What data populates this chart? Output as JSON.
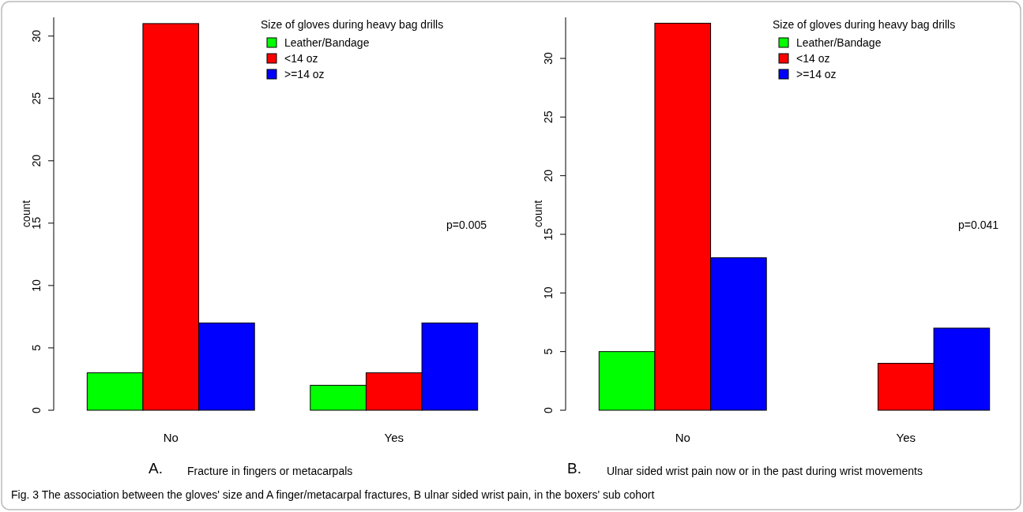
{
  "chart_data": [
    {
      "type": "bar",
      "categories": [
        "No",
        "Yes"
      ],
      "xlabel": "Fracture in fingers or metacarpals",
      "ylabel": "count",
      "legend_title": "Size of gloves during heavy bag drills",
      "legend": "top right",
      "ylim": [
        0,
        31.5
      ],
      "yticks": [
        0,
        5,
        10,
        15,
        20,
        25,
        30
      ],
      "grid": false,
      "series": [
        {
          "name": "Leather/Bandage",
          "color": "#00ff00",
          "values": [
            3,
            2
          ]
        },
        {
          "name": "<14 oz",
          "color": "#ff0000",
          "values": [
            31,
            3
          ]
        },
        {
          "name": ">=14 oz",
          "color": "#0000ff",
          "values": [
            7,
            7
          ]
        }
      ],
      "annotations": [
        "p=0.005",
        "A.",
        "Fig. 3  The association between the gloves' size and A finger/metacarpal fractures, B ulnar sided wrist pain, in the boxers' sub cohort"
      ]
    },
    {
      "type": "bar",
      "categories": [
        "No",
        "Yes"
      ],
      "xlabel": "Ulnar sided wrist pain now or in the past during wrist movements",
      "ylabel": "count",
      "legend_title": "Size of gloves during heavy bag drills",
      "legend": "top right",
      "ylim": [
        0,
        33.5
      ],
      "yticks": [
        0,
        5,
        10,
        15,
        20,
        25,
        30
      ],
      "grid": false,
      "series": [
        {
          "name": "Leather/Bandage",
          "color": "#00ff00",
          "values": [
            5,
            0
          ]
        },
        {
          "name": "<14 oz",
          "color": "#ff0000",
          "values": [
            33,
            4
          ]
        },
        {
          "name": ">=14 oz",
          "color": "#0000ff",
          "values": [
            13,
            7
          ]
        }
      ],
      "annotations": [
        "p=0.041",
        "B."
      ]
    }
  ]
}
